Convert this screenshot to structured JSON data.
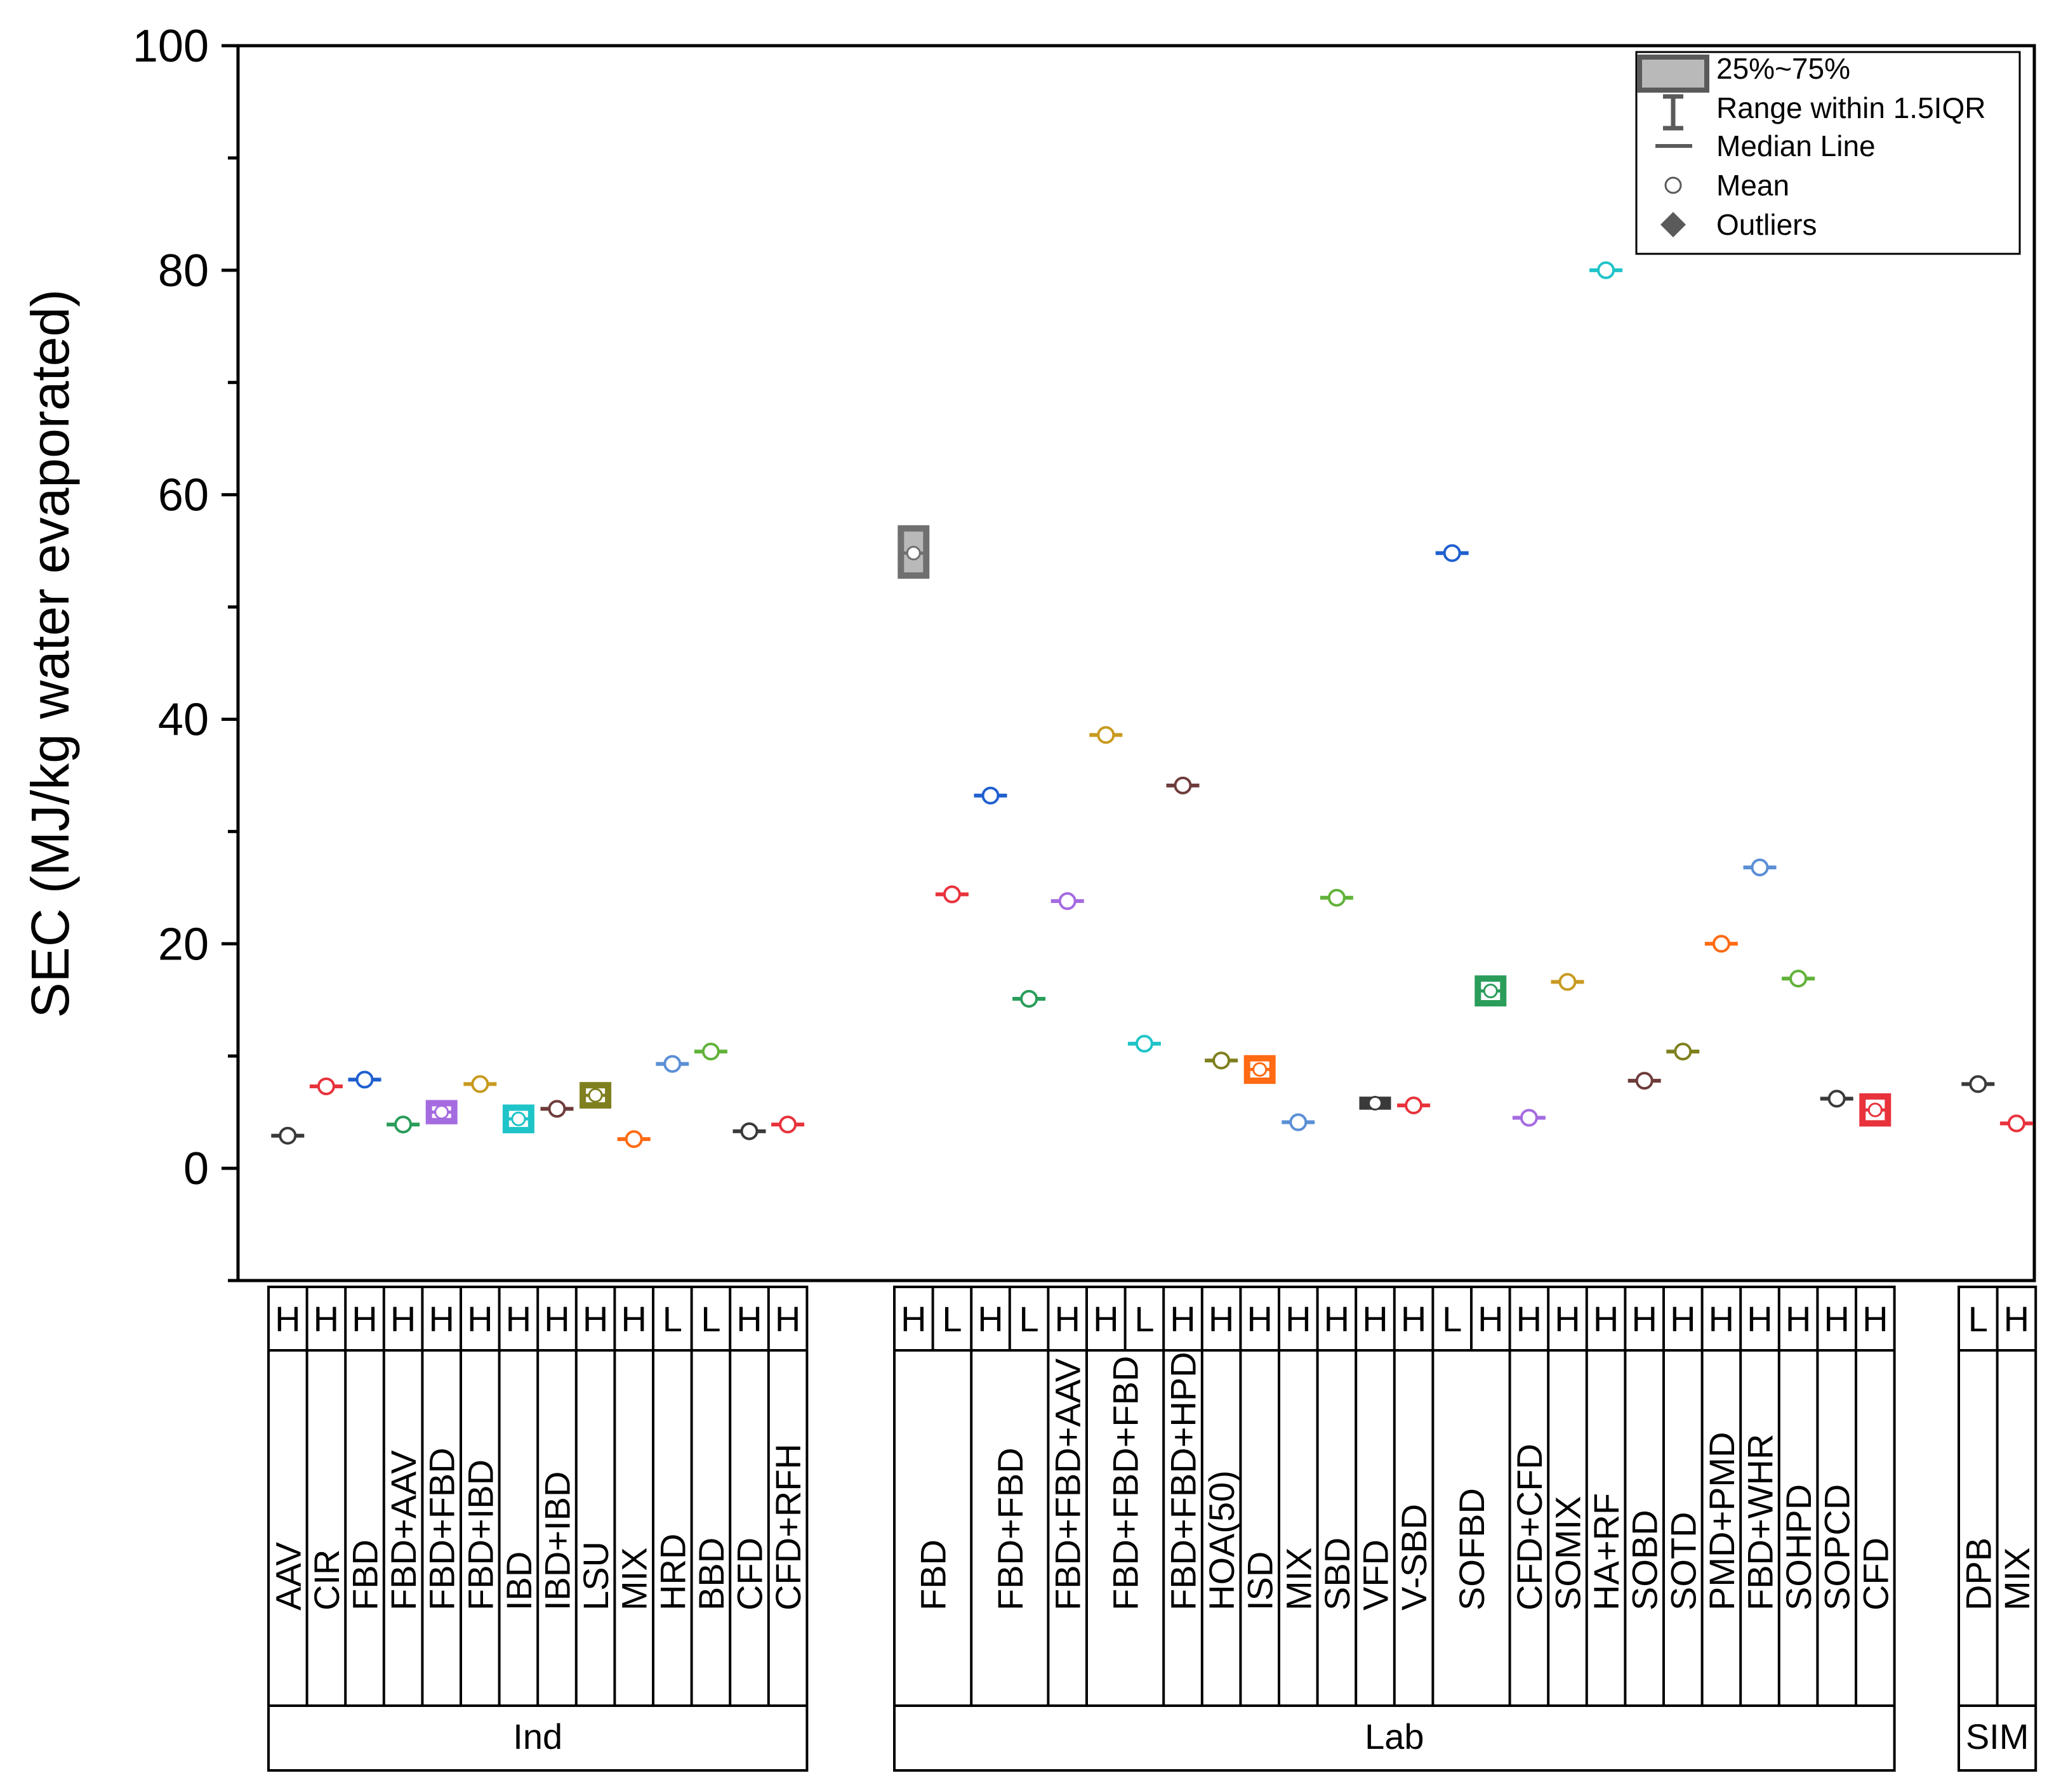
{
  "chart_data": {
    "type": "box",
    "title": "",
    "ylabel": "SEC (MJ/kg water evaporated)",
    "xlabel": "",
    "ylim": [
      -10,
      100
    ],
    "yticks": [
      0,
      20,
      40,
      60,
      80,
      100
    ],
    "legend": {
      "position": "top-right",
      "entries": [
        "25%~75%",
        "Range within 1.5IQR",
        "Median Line",
        "Mean",
        "Outliers"
      ]
    },
    "groups": [
      {
        "name": "Ind",
        "items": [
          {
            "label": "AAV",
            "hl": [
              "H"
            ],
            "means": [
              2.9
            ],
            "colors": [
              "#3a3a3a"
            ]
          },
          {
            "label": "CIR",
            "hl": [
              "H"
            ],
            "means": [
              7.3
            ],
            "colors": [
              "#e8333c"
            ]
          },
          {
            "label": "FBD",
            "hl": [
              "H"
            ],
            "means": [
              7.9
            ],
            "colors": [
              "#1f5fcf"
            ]
          },
          {
            "label": "FBD+AAV",
            "hl": [
              "H"
            ],
            "means": [
              3.9
            ],
            "colors": [
              "#2a9d5a"
            ]
          },
          {
            "label": "FBD+FBD",
            "hl": [
              "H"
            ],
            "means": [
              5.0
            ],
            "colors": [
              "#a56be0"
            ],
            "box": [
              4.2,
              5.8
            ]
          },
          {
            "label": "FBD+IBD",
            "hl": [
              "H"
            ],
            "means": [
              7.5
            ],
            "colors": [
              "#c89a20"
            ]
          },
          {
            "label": "IBD",
            "hl": [
              "H"
            ],
            "means": [
              4.4
            ],
            "colors": [
              "#1fc4c8"
            ],
            "box": [
              3.4,
              5.4
            ]
          },
          {
            "label": "IBD+IBD",
            "hl": [
              "H"
            ],
            "means": [
              5.3
            ],
            "colors": [
              "#6e3b3b"
            ]
          },
          {
            "label": "LSU",
            "hl": [
              "H"
            ],
            "means": [
              6.5
            ],
            "colors": [
              "#7f7f1f"
            ],
            "box": [
              5.6,
              7.4
            ]
          },
          {
            "label": "MIX",
            "hl": [
              "H"
            ],
            "means": [
              2.6
            ],
            "colors": [
              "#ff6a13"
            ]
          },
          {
            "label": "HRD",
            "hl": [
              "L"
            ],
            "means": [
              9.3
            ],
            "colors": [
              "#5b8fd6"
            ]
          },
          {
            "label": "BBD",
            "hl": [
              "L"
            ],
            "means": [
              10.4
            ],
            "colors": [
              "#62b23a"
            ]
          },
          {
            "label": "CFD",
            "hl": [
              "H"
            ],
            "means": [
              3.3
            ],
            "colors": [
              "#3a3a3a"
            ]
          },
          {
            "label": "CFD+RFH",
            "hl": [
              "H"
            ],
            "means": [
              3.9
            ],
            "colors": [
              "#e8333c"
            ]
          }
        ]
      },
      {
        "name": "Lab",
        "items": [
          {
            "label": "FBD",
            "hl": [
              "H",
              "L"
            ],
            "means": [
              54.8,
              24.4
            ],
            "colors": [
              "#707070",
              "#e8333c"
            ],
            "box": [
              52.8,
              57.0
            ]
          },
          {
            "label": "FBD+FBD",
            "hl": [
              "H",
              "L"
            ],
            "means": [
              33.2,
              15.1
            ],
            "colors": [
              "#1f5fcf",
              "#2a9d5a"
            ]
          },
          {
            "label": "FBD+FBD+AAV",
            "hl": [
              "H"
            ],
            "means": [
              23.8
            ],
            "colors": [
              "#a56be0"
            ]
          },
          {
            "label": "FBD+FBD+FBD",
            "hl": [
              "H",
              "L"
            ],
            "means": [
              38.6,
              11.1
            ],
            "colors": [
              "#c89a20",
              "#1fc4c8"
            ]
          },
          {
            "label": "FBD+FBD+HPD",
            "hl": [
              "H"
            ],
            "means": [
              34.1
            ],
            "colors": [
              "#6e3b3b"
            ]
          },
          {
            "label": "HOA(50)",
            "hl": [
              "H"
            ],
            "means": [
              9.6
            ],
            "colors": [
              "#7f7f1f"
            ]
          },
          {
            "label": "ISD",
            "hl": [
              "H"
            ],
            "means": [
              8.8
            ],
            "colors": [
              "#ff6a13"
            ],
            "box": [
              7.8,
              9.8
            ]
          },
          {
            "label": "MIX",
            "hl": [
              "H"
            ],
            "means": [
              4.1
            ],
            "colors": [
              "#5b8fd6"
            ]
          },
          {
            "label": "SBD",
            "hl": [
              "H"
            ],
            "means": [
              24.1
            ],
            "colors": [
              "#62b23a"
            ]
          },
          {
            "label": "VFD",
            "hl": [
              "H"
            ],
            "means": [
              5.8
            ],
            "colors": [
              "#3a3a3a"
            ],
            "box": [
              5.5,
              6.1
            ]
          },
          {
            "label": "V-SBD",
            "hl": [
              "H"
            ],
            "means": [
              5.6
            ],
            "colors": [
              "#e8333c"
            ]
          },
          {
            "label": "SOFBD",
            "hl": [
              "L",
              "H"
            ],
            "means": [
              54.8,
              15.8
            ],
            "colors": [
              "#1f5fcf",
              "#2a9d5a"
            ],
            "boxIndex": 1,
            "box": [
              14.7,
              16.9
            ]
          },
          {
            "label": "CFD+CFD",
            "hl": [
              "H"
            ],
            "means": [
              4.5
            ],
            "colors": [
              "#a56be0"
            ]
          },
          {
            "label": "SOMIX",
            "hl": [
              "H"
            ],
            "means": [
              16.6
            ],
            "colors": [
              "#c89a20"
            ]
          },
          {
            "label": "HA+RF",
            "hl": [
              "H"
            ],
            "means": [
              80.0
            ],
            "colors": [
              "#1fc4c8"
            ]
          },
          {
            "label": "SOBD",
            "hl": [
              "H"
            ],
            "means": [
              7.8
            ],
            "colors": [
              "#6e3b3b"
            ]
          },
          {
            "label": "SOTD",
            "hl": [
              "H"
            ],
            "means": [
              10.4
            ],
            "colors": [
              "#7f7f1f"
            ]
          },
          {
            "label": "PMD+PMD",
            "hl": [
              "H"
            ],
            "means": [
              20.0
            ],
            "colors": [
              "#ff6a13"
            ]
          },
          {
            "label": "FBD+WHR",
            "hl": [
              "H"
            ],
            "means": [
              26.8
            ],
            "colors": [
              "#5b8fd6"
            ]
          },
          {
            "label": "SOHPD",
            "hl": [
              "H"
            ],
            "means": [
              16.9
            ],
            "colors": [
              "#62b23a"
            ]
          },
          {
            "label": "SOPCD",
            "hl": [
              "H"
            ],
            "means": [
              6.2
            ],
            "colors": [
              "#3a3a3a"
            ]
          },
          {
            "label": "CFD",
            "hl": [
              "H"
            ],
            "means": [
              5.2
            ],
            "colors": [
              "#e8333c"
            ],
            "box": [
              4.0,
              6.4
            ]
          }
        ]
      },
      {
        "name": "SIM",
        "items": [
          {
            "label": "DPB",
            "hl": [
              "L"
            ],
            "means": [
              7.5
            ],
            "colors": [
              "#3a3a3a"
            ]
          },
          {
            "label": "MIX",
            "hl": [
              "H"
            ],
            "means": [
              4.0
            ],
            "colors": [
              "#e8333c"
            ]
          }
        ]
      }
    ]
  }
}
